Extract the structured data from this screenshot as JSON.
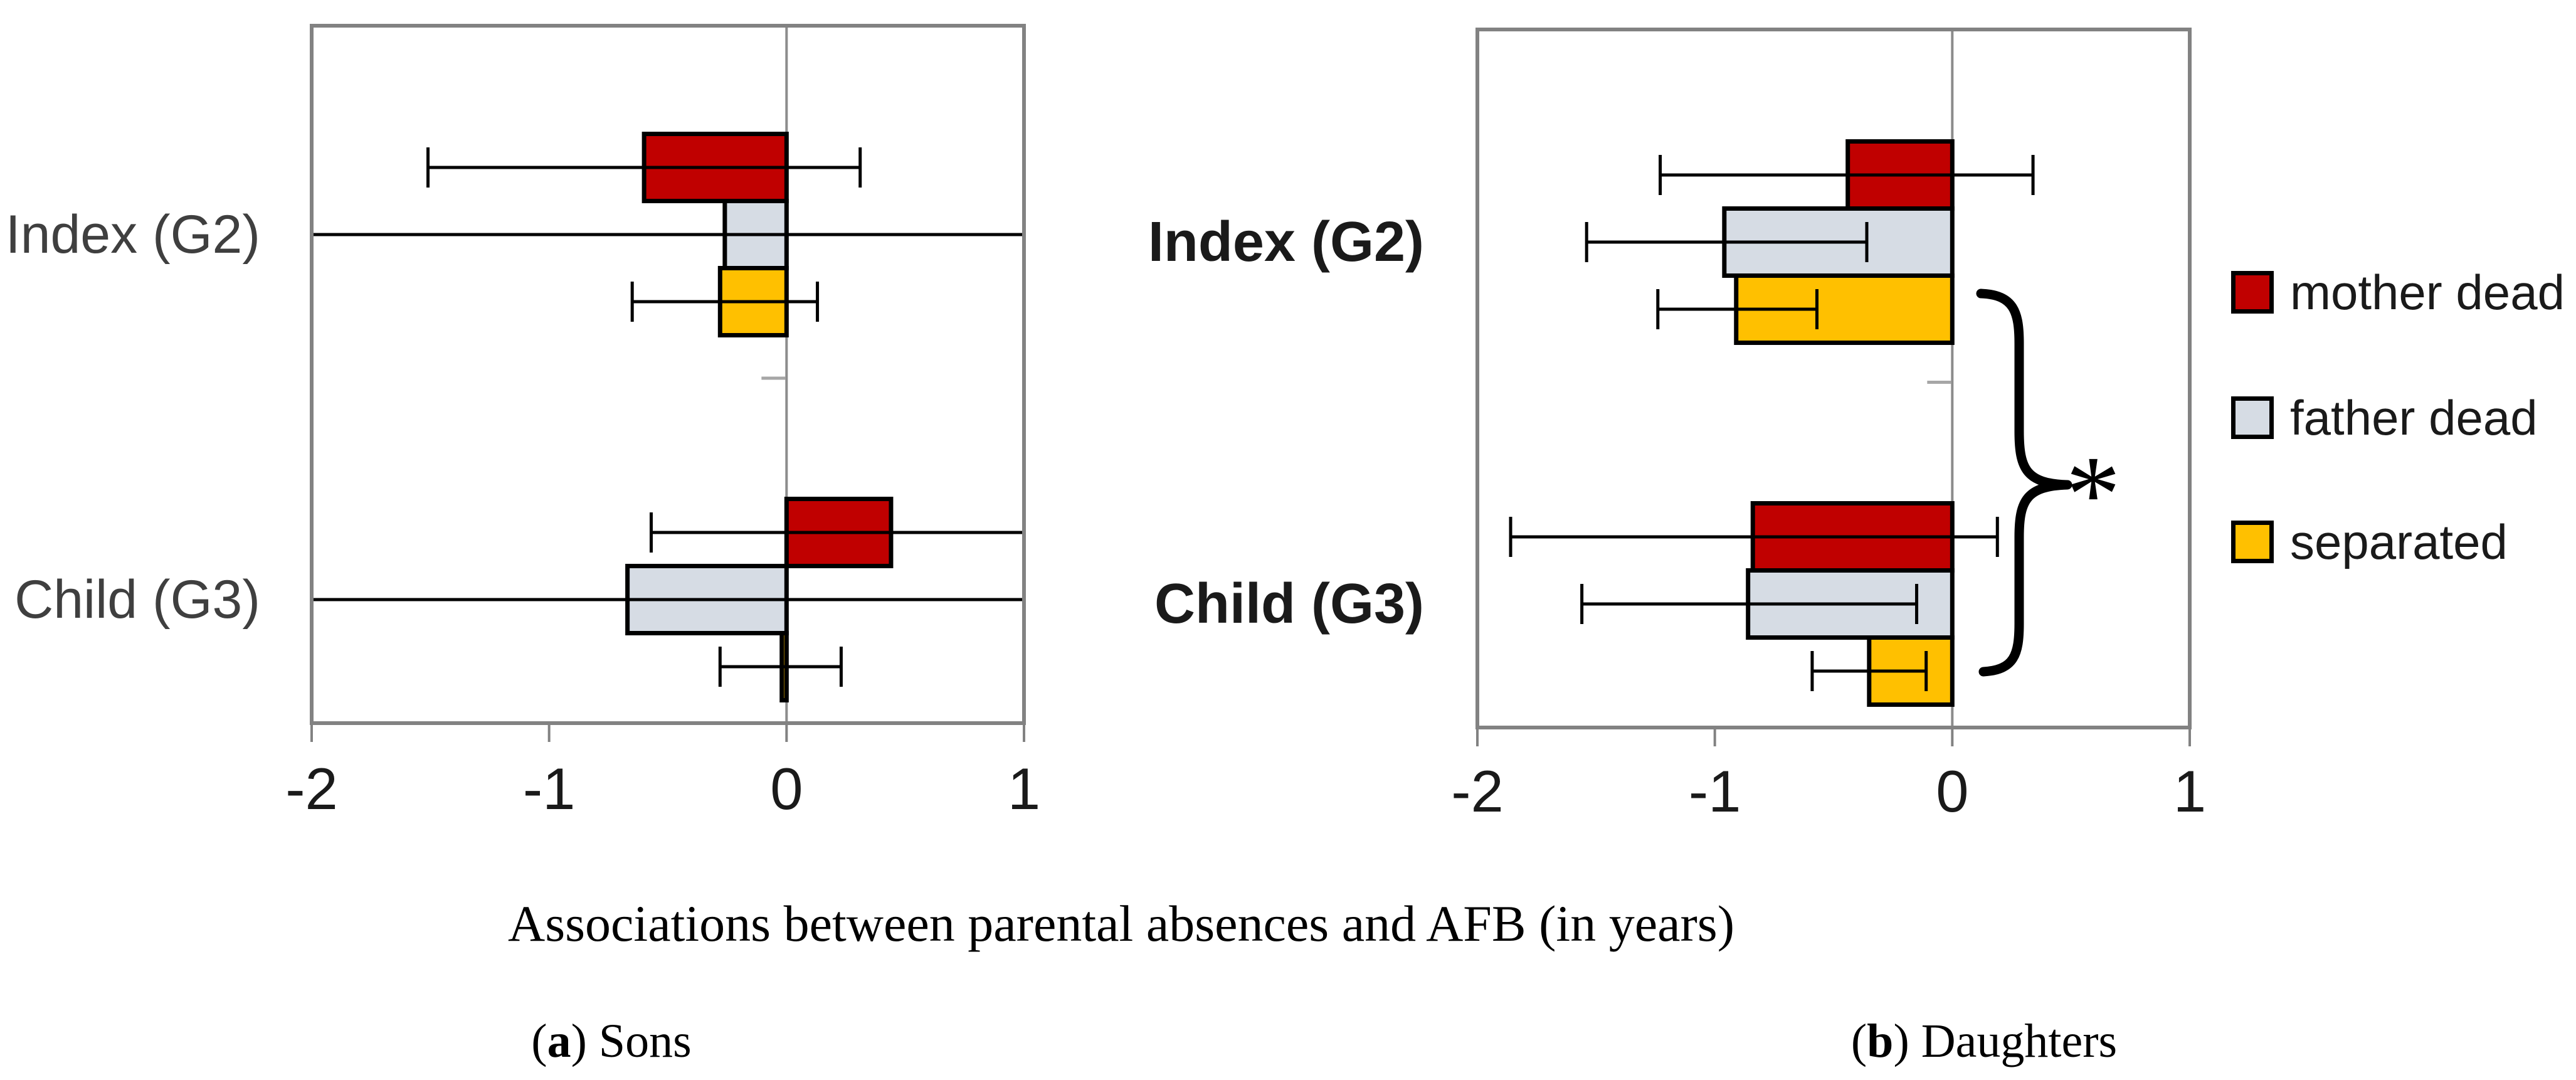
{
  "title": {
    "text": "Associations between parental absences and AFB (in years)"
  },
  "captions": [
    {
      "pre": "(",
      "marker": "a",
      "post": ")",
      "text": " Sons"
    },
    {
      "pre": "(",
      "marker": "b",
      "post": ")",
      "text": " Daughters"
    }
  ],
  "legend": {
    "position": "right",
    "items": [
      {
        "label": "mother dead",
        "color": "#C00000"
      },
      {
        "label": "father dead",
        "color": "#D6DCE4"
      },
      {
        "label": "separated",
        "color": "#FFC000"
      }
    ]
  },
  "annotation": {
    "symbol": "*",
    "panel": "daughters",
    "spans": "separated bar Index (G2) to separated bar Child (G3)"
  },
  "colors": {
    "mother_dead": "#C00000",
    "father_dead": "#D6DCE4",
    "separated": "#FFC000",
    "bar_outline": "#000000",
    "error_bar": "#000000",
    "axis_border": "#828282",
    "zero_line": "#8C8C8C",
    "boundary_tick": "#A6A6A6"
  },
  "chart_data": [
    {
      "id": "sons",
      "type": "bar",
      "orientation": "horizontal",
      "caption": "(a) Sons",
      "xlim": [
        -2,
        1
      ],
      "xticks": [
        "-2",
        "-1",
        "0",
        "1"
      ],
      "xtick_values": [
        -2,
        -1,
        0,
        1
      ],
      "categories": [
        "Index (G2)",
        "Child (G3)"
      ],
      "grid": "off",
      "series": [
        {
          "name": "mother dead",
          "color": "#C00000",
          "values": [
            -0.6,
            0.44
          ],
          "ci": [
            [
              -1.51,
              0.31
            ],
            [
              -0.57,
              1.2
            ]
          ],
          "note": "Child (G3) upper CI extends beyond axis (clipped, no cap)"
        },
        {
          "name": "father dead",
          "color": "#D6DCE4",
          "values": [
            -0.26,
            -0.67
          ],
          "ci": [
            [
              -2.2,
              1.2
            ],
            [
              -2.2,
              1.2
            ]
          ],
          "note": "CIs wider than axis range; drawn as full-width lines without caps"
        },
        {
          "name": "separated",
          "color": "#FFC000",
          "values": [
            -0.28,
            -0.02
          ],
          "ci": [
            [
              -0.65,
              0.13
            ],
            [
              -0.28,
              0.23
            ]
          ]
        }
      ]
    },
    {
      "id": "daughters",
      "type": "bar",
      "orientation": "horizontal",
      "caption": "(b) Daughters",
      "xlim": [
        -2,
        1
      ],
      "xticks": [
        "-2",
        "-1",
        "0",
        "1"
      ],
      "xtick_values": [
        -2,
        -1,
        0,
        1
      ],
      "categories": [
        "Index (G2)",
        "Child (G3)"
      ],
      "grid": "off",
      "legend_position": "right",
      "series": [
        {
          "name": "mother dead",
          "color": "#C00000",
          "values": [
            -0.44,
            -0.84
          ],
          "ci": [
            [
              -1.23,
              0.34
            ],
            [
              -1.86,
              0.19
            ]
          ]
        },
        {
          "name": "father dead",
          "color": "#D6DCE4",
          "values": [
            -0.96,
            -0.86
          ],
          "ci": [
            [
              -1.54,
              -0.36
            ],
            [
              -1.56,
              -0.15
            ]
          ]
        },
        {
          "name": "separated",
          "color": "#FFC000",
          "values": [
            -0.91,
            -0.35
          ],
          "ci": [
            [
              -1.24,
              -0.57
            ],
            [
              -0.59,
              -0.11
            ]
          ]
        }
      ],
      "brace": {
        "symbol": "*",
        "from": "separated Index (G2)",
        "to": "separated Child (G3)"
      }
    }
  ]
}
